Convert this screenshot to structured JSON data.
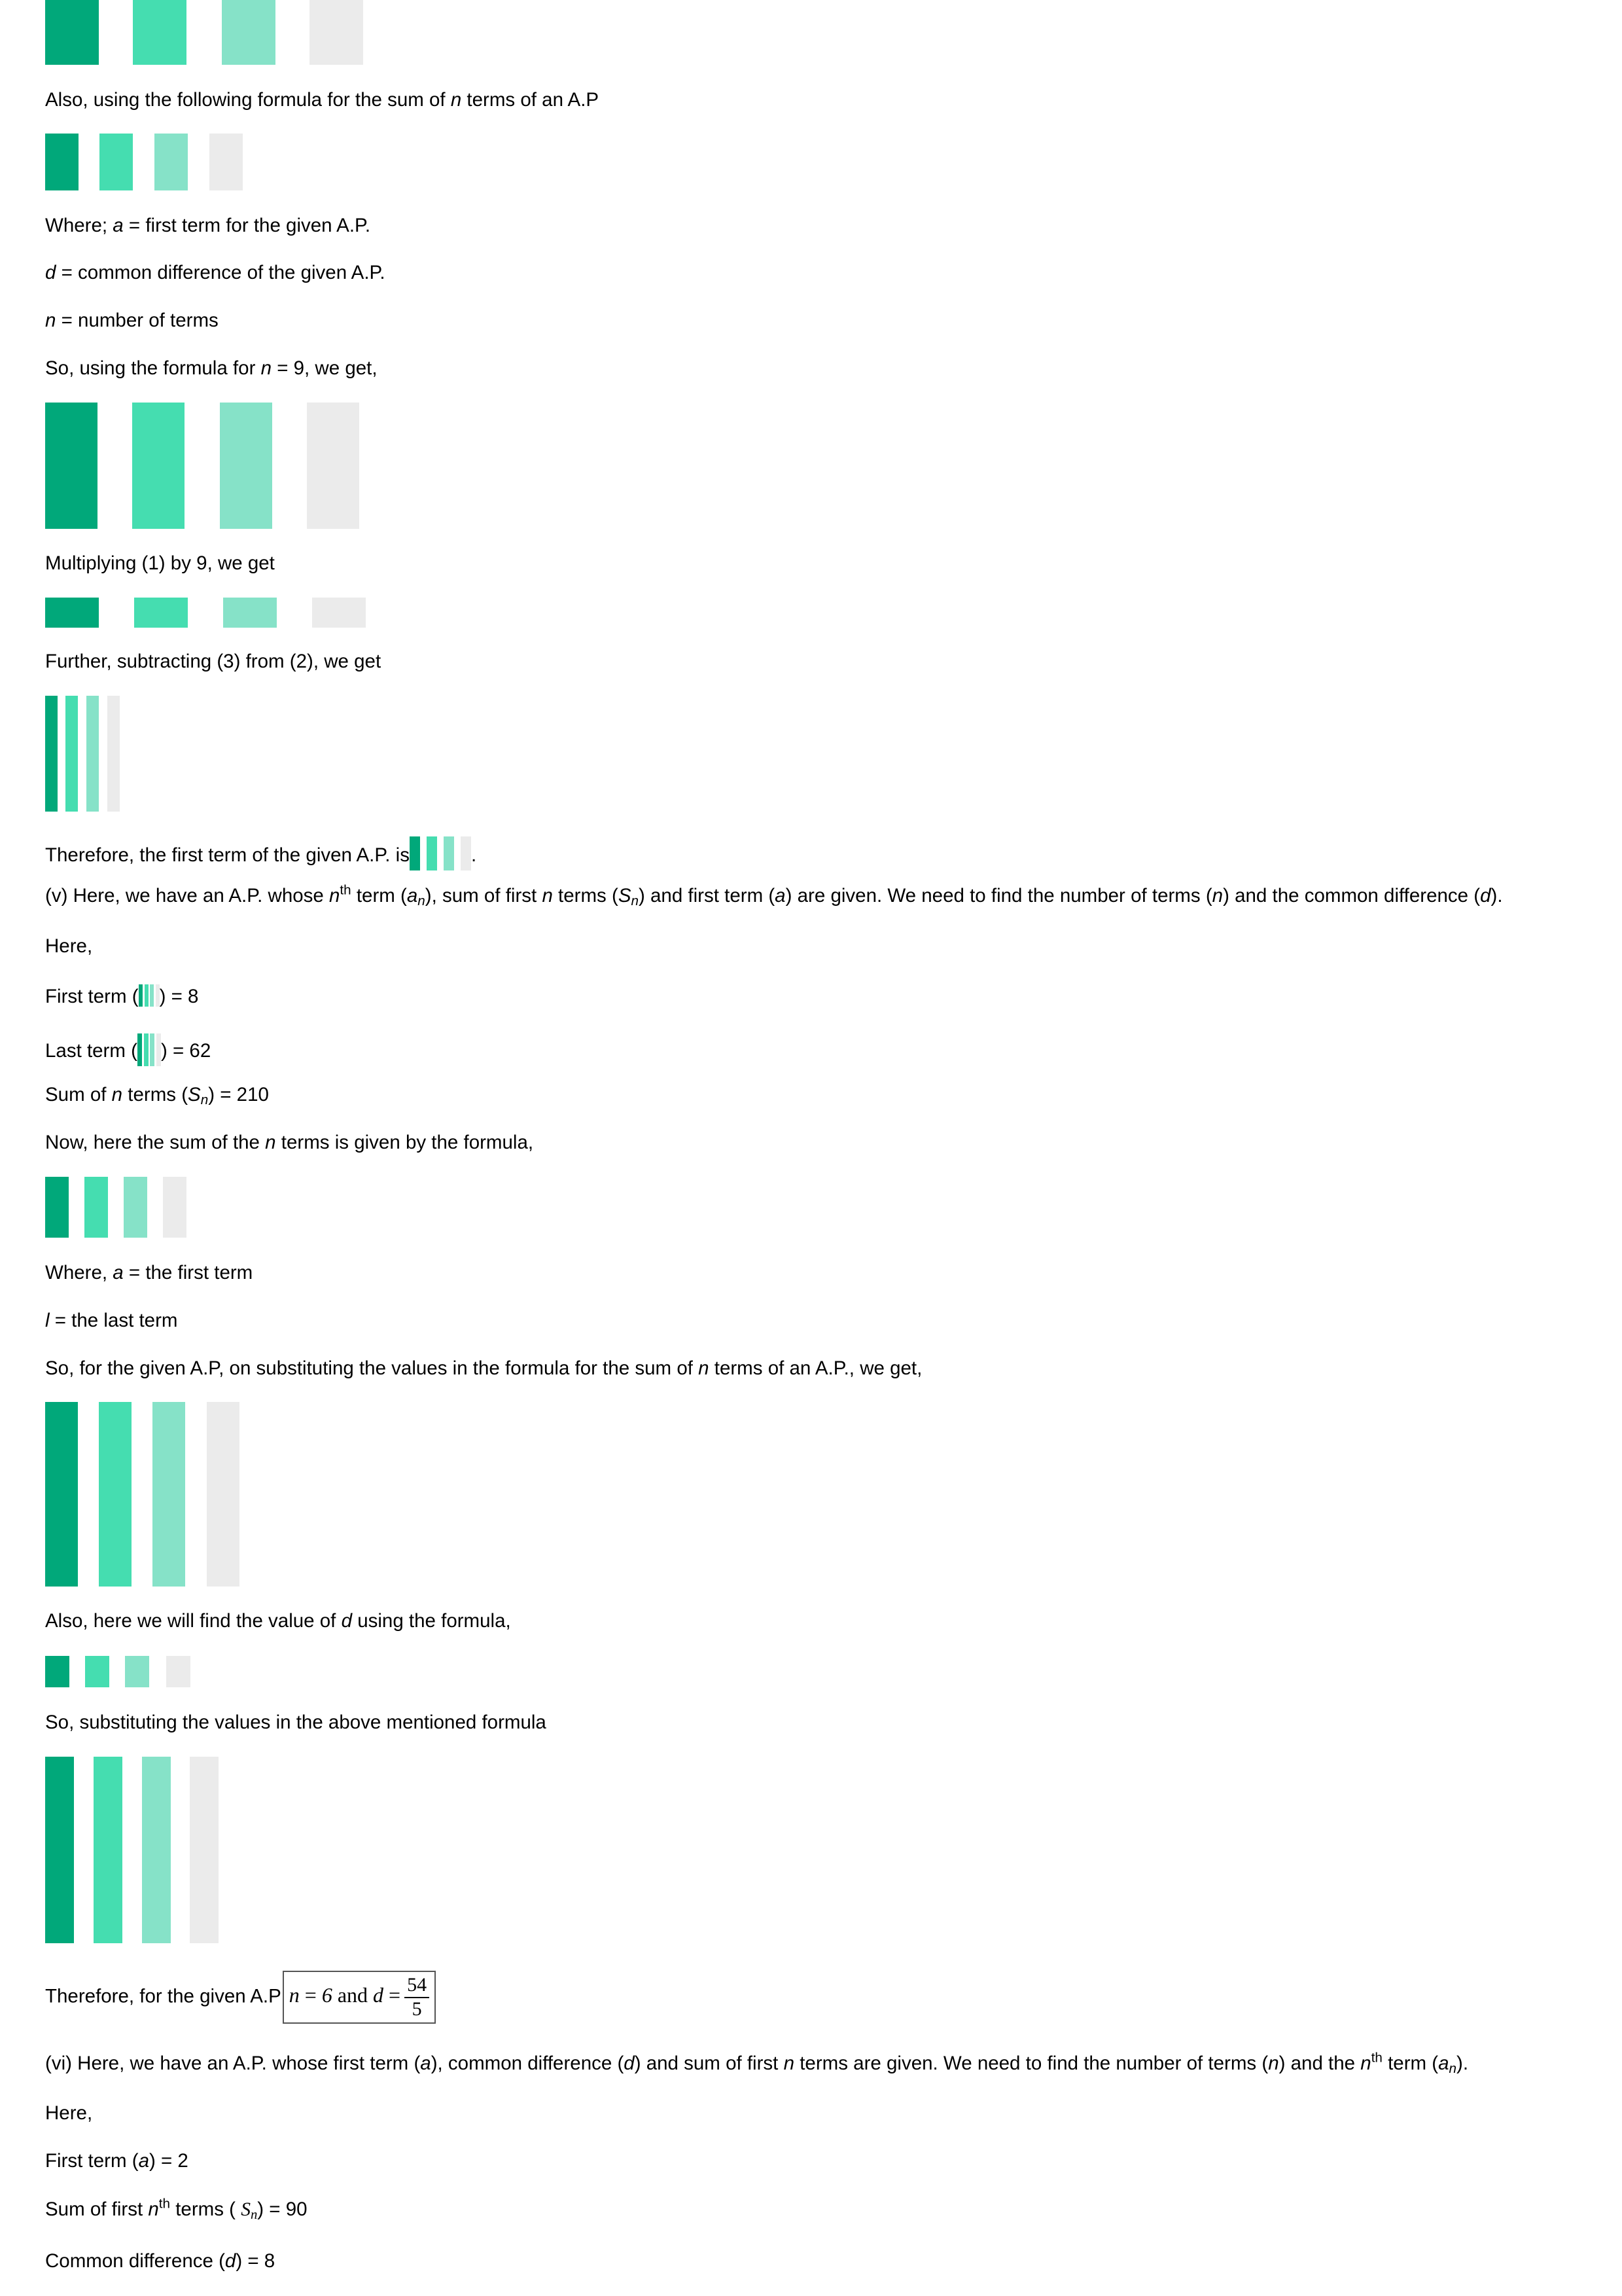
{
  "colors": {
    "dark": "#01a87a",
    "mid": "#45ddb0",
    "light": "#86e2c8",
    "grey": "#ebebeb"
  },
  "blocks": [
    {
      "line": "Also, using the following formula for the sum of n terms of an A.P"
    },
    {
      "line": "Where; a = first term for the given A.P."
    },
    {
      "line": "d = common difference of the given A.P."
    },
    {
      "line": "n = number of terms"
    },
    {
      "line": "So, using the formula for n = 9, we get,"
    },
    {
      "line": "Multiplying (1) by 9, we get"
    },
    {
      "line": "Further, subtracting (3) from (2), we get"
    },
    {
      "line": "Therefore, the first term of the given A.P. is",
      "after": "."
    },
    {
      "line": "(v) Here, we have an A.P. whose nth term (an), sum of first n terms (Sn) and first term (a) are given. We need to find the number of terms (n) and the common difference (d)."
    },
    {
      "line": "Here,"
    },
    {
      "line": "First term (",
      "after": ") = 8"
    },
    {
      "line": "Last term (",
      "after": ") = 62"
    },
    {
      "line": "Sum of n terms (Sn) = 210"
    },
    {
      "line": "Now, here the sum of the n terms is given by the formula,"
    },
    {
      "line": "Where, a = the first term"
    },
    {
      "line": "l = the last term"
    },
    {
      "line": "So, for the given A.P, on substituting the values in the formula for the sum of n terms of an A.P., we get,"
    },
    {
      "line": "Also, here we will find the value of d using the formula,"
    },
    {
      "line": "So, substituting the values in the above mentioned formula"
    },
    {
      "line": "Therefore, for the given A.P",
      "boxed": "n = 6 and d =",
      "num": "54",
      "den": "5"
    },
    {
      "line": "(vi) Here, we have an A.P. whose first term (a), common difference (d) and sum of first n terms are given. We need to find the number of terms (n) and the nth term (an)."
    },
    {
      "line": "Here,"
    },
    {
      "line": "First term (a) = 2"
    },
    {
      "line": "Sum of first nth terms (",
      "symbol": "Sn",
      "after": ") = 90"
    },
    {
      "line": "Common difference (d) = 8"
    }
  ]
}
